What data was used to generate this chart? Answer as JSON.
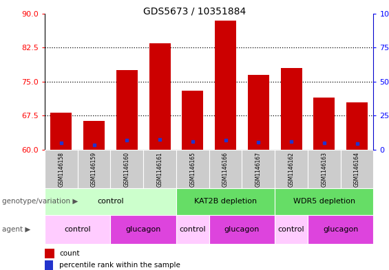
{
  "title": "GDS5673 / 10351884",
  "samples": [
    "GSM1146158",
    "GSM1146159",
    "GSM1146160",
    "GSM1146161",
    "GSM1146165",
    "GSM1146166",
    "GSM1146167",
    "GSM1146162",
    "GSM1146163",
    "GSM1146164"
  ],
  "bar_tops": [
    68.2,
    66.4,
    77.5,
    83.5,
    73.0,
    88.5,
    76.5,
    78.0,
    71.5,
    70.5
  ],
  "blue_positions": [
    61.6,
    61.1,
    62.2,
    62.3,
    61.8,
    62.2,
    61.7,
    61.9,
    61.6,
    61.4
  ],
  "ymin": 60,
  "ymax": 90,
  "yticks_left": [
    60,
    67.5,
    75,
    82.5,
    90
  ],
  "yticks_right_pcts": [
    0,
    25,
    50,
    75,
    100
  ],
  "yticks_right_labels": [
    "0",
    "25",
    "50",
    "75",
    "100%"
  ],
  "bar_color": "#cc0000",
  "blue_color": "#2233cc",
  "bar_width": 0.65,
  "genotype_groups": [
    {
      "label": "control",
      "start": 0,
      "end": 3,
      "color": "#ccffcc"
    },
    {
      "label": "KAT2B depletion",
      "start": 4,
      "end": 6,
      "color": "#66dd66"
    },
    {
      "label": "WDR5 depletion",
      "start": 7,
      "end": 9,
      "color": "#66dd66"
    }
  ],
  "agent_groups": [
    {
      "label": "control",
      "start": 0,
      "end": 1,
      "color": "#ffccff"
    },
    {
      "label": "glucagon",
      "start": 2,
      "end": 3,
      "color": "#dd44dd"
    },
    {
      "label": "control",
      "start": 4,
      "end": 4,
      "color": "#ffccff"
    },
    {
      "label": "glucagon",
      "start": 5,
      "end": 6,
      "color": "#dd44dd"
    },
    {
      "label": "control",
      "start": 7,
      "end": 7,
      "color": "#ffccff"
    },
    {
      "label": "glucagon",
      "start": 8,
      "end": 9,
      "color": "#dd44dd"
    }
  ],
  "genotype_label": "genotype/variation",
  "agent_label": "agent",
  "legend_count_label": "count",
  "legend_pct_label": "percentile rank within the sample",
  "sample_bg_color": "#cccccc",
  "grid_yticks": [
    67.5,
    75,
    82.5
  ]
}
